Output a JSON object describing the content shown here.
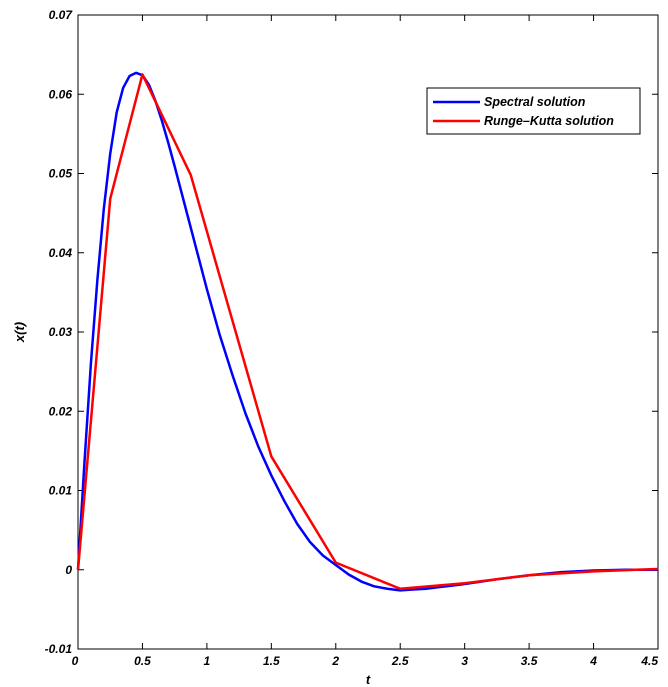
{
  "chart_data": {
    "type": "line",
    "title": "",
    "xlabel": "t",
    "ylabel": "x(t)",
    "xlim": [
      0,
      4.5
    ],
    "ylim": [
      -0.01,
      0.07
    ],
    "x_ticks": [
      0,
      0.5,
      1,
      1.5,
      2,
      2.5,
      3,
      3.5,
      4,
      4.5
    ],
    "x_tick_labels": [
      "0",
      "0.5",
      "1",
      "1.5",
      "2",
      "2.5",
      "3",
      "3.5",
      "4",
      "4.5"
    ],
    "y_ticks": [
      -0.01,
      0,
      0.01,
      0.02,
      0.03,
      0.04,
      0.05,
      0.06,
      0.07
    ],
    "y_tick_labels": [
      "-0.01",
      "0",
      "0.01",
      "0.02",
      "0.03",
      "0.04",
      "0.05",
      "0.06",
      "0.07"
    ],
    "grid": false,
    "legend_position": "top-right",
    "series": [
      {
        "name": "Spectral solution",
        "color": "#0000ff",
        "x": [
          0,
          0.05,
          0.1,
          0.15,
          0.2,
          0.25,
          0.3,
          0.35,
          0.4,
          0.45,
          0.5,
          0.55,
          0.6,
          0.65,
          0.7,
          0.75,
          0.8,
          0.85,
          0.9,
          1.0,
          1.1,
          1.2,
          1.3,
          1.4,
          1.5,
          1.6,
          1.7,
          1.8,
          1.9,
          2.0,
          2.1,
          2.2,
          2.3,
          2.4,
          2.5,
          2.6,
          2.7,
          2.8,
          2.9,
          3.0,
          3.25,
          3.5,
          3.75,
          4.0,
          4.25,
          4.5
        ],
        "y": [
          0,
          0.0135,
          0.026,
          0.0365,
          0.0455,
          0.0525,
          0.0577,
          0.0608,
          0.0623,
          0.0627,
          0.0624,
          0.0612,
          0.0592,
          0.0567,
          0.0539,
          0.0509,
          0.0478,
          0.0447,
          0.0416,
          0.0354,
          0.0296,
          0.0245,
          0.0197,
          0.0155,
          0.0119,
          0.0087,
          0.0058,
          0.0035,
          0.0018,
          0.0006,
          -0.0006,
          -0.0015,
          -0.0021,
          -0.0024,
          -0.0026,
          -0.0025,
          -0.0024,
          -0.0022,
          -0.002,
          -0.0018,
          -0.0012,
          -0.0007,
          -0.0003,
          -0.0001,
          0,
          0
        ]
      },
      {
        "name": "Runge–Kutta solution",
        "color": "#ff0000",
        "x": [
          0,
          0.25,
          0.5,
          0.875,
          1.5,
          2.0,
          2.5,
          3.0,
          3.5,
          4.0,
          4.5
        ],
        "y": [
          0,
          0.0468,
          0.0625,
          0.0498,
          0.0143,
          0.0009,
          -0.0024,
          -0.0017,
          -0.0007,
          -0.0002,
          0.0001
        ]
      }
    ]
  }
}
